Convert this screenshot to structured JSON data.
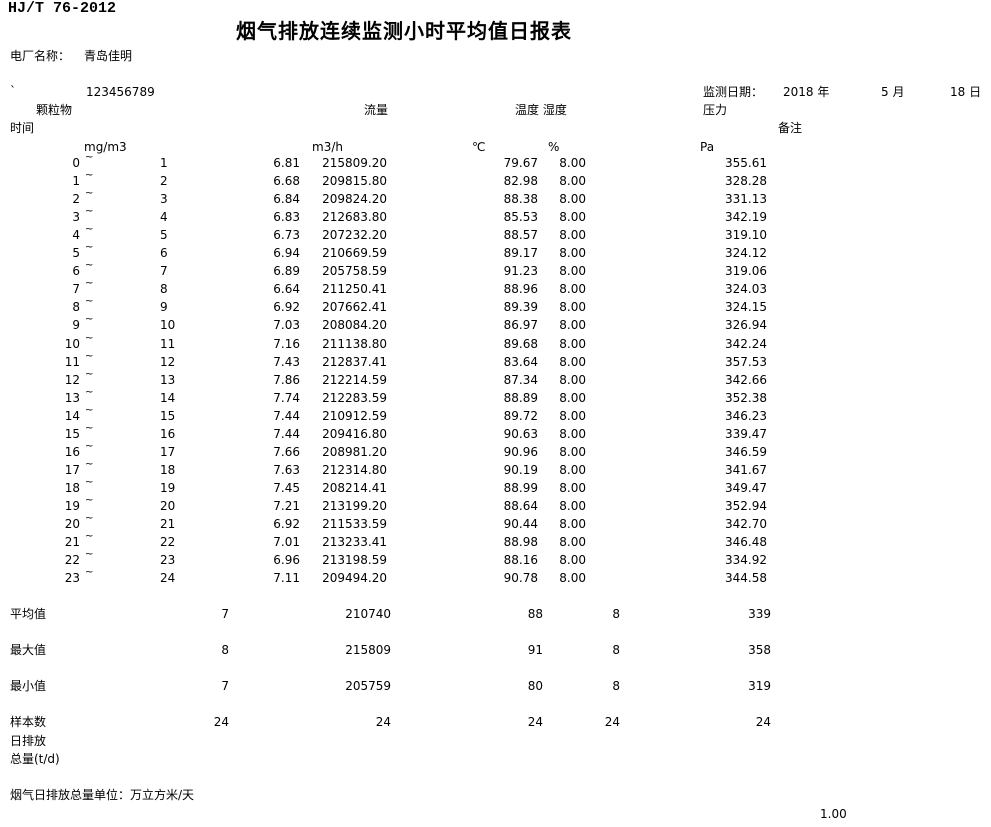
{
  "header": {
    "standard": "HJ/T 76-2012",
    "title": "烟气排放连续监测小时平均值日报表",
    "plant_label": "电厂名称：",
    "plant_name": "青岛佳明",
    "backtick": "`",
    "code": "123456789",
    "date_label": "监测日期：",
    "year": "2018 年",
    "month": "5 月",
    "day": "18 日"
  },
  "columns": {
    "particulate": "颗粒物",
    "flow": "流量",
    "temp_humidity": "温度 湿度",
    "pressure": "压力",
    "time": "时间",
    "remark": "备注",
    "unit_particulate": "mg/m3",
    "unit_flow": "m3/h",
    "unit_temp": "℃",
    "unit_humidity": "%",
    "unit_pressure": "Pa"
  },
  "rows": [
    {
      "start": "0",
      "end": "1",
      "pm": "6.81",
      "flow": "215809.20",
      "temp": "79.67",
      "hum": "8.00",
      "pres": "355.61"
    },
    {
      "start": "1",
      "end": "2",
      "pm": "6.68",
      "flow": "209815.80",
      "temp": "82.98",
      "hum": "8.00",
      "pres": "328.28"
    },
    {
      "start": "2",
      "end": "3",
      "pm": "6.84",
      "flow": "209824.20",
      "temp": "88.38",
      "hum": "8.00",
      "pres": "331.13"
    },
    {
      "start": "3",
      "end": "4",
      "pm": "6.83",
      "flow": "212683.80",
      "temp": "85.53",
      "hum": "8.00",
      "pres": "342.19"
    },
    {
      "start": "4",
      "end": "5",
      "pm": "6.73",
      "flow": "207232.20",
      "temp": "88.57",
      "hum": "8.00",
      "pres": "319.10"
    },
    {
      "start": "5",
      "end": "6",
      "pm": "6.94",
      "flow": "210669.59",
      "temp": "89.17",
      "hum": "8.00",
      "pres": "324.12"
    },
    {
      "start": "6",
      "end": "7",
      "pm": "6.89",
      "flow": "205758.59",
      "temp": "91.23",
      "hum": "8.00",
      "pres": "319.06"
    },
    {
      "start": "7",
      "end": "8",
      "pm": "6.64",
      "flow": "211250.41",
      "temp": "88.96",
      "hum": "8.00",
      "pres": "324.03"
    },
    {
      "start": "8",
      "end": "9",
      "pm": "6.92",
      "flow": "207662.41",
      "temp": "89.39",
      "hum": "8.00",
      "pres": "324.15"
    },
    {
      "start": "9",
      "end": "10",
      "pm": "7.03",
      "flow": "208084.20",
      "temp": "86.97",
      "hum": "8.00",
      "pres": "326.94"
    },
    {
      "start": "10",
      "end": "11",
      "pm": "7.16",
      "flow": "211138.80",
      "temp": "89.68",
      "hum": "8.00",
      "pres": "342.24"
    },
    {
      "start": "11",
      "end": "12",
      "pm": "7.43",
      "flow": "212837.41",
      "temp": "83.64",
      "hum": "8.00",
      "pres": "357.53"
    },
    {
      "start": "12",
      "end": "13",
      "pm": "7.86",
      "flow": "212214.59",
      "temp": "87.34",
      "hum": "8.00",
      "pres": "342.66"
    },
    {
      "start": "13",
      "end": "14",
      "pm": "7.74",
      "flow": "212283.59",
      "temp": "88.89",
      "hum": "8.00",
      "pres": "352.38"
    },
    {
      "start": "14",
      "end": "15",
      "pm": "7.44",
      "flow": "210912.59",
      "temp": "89.72",
      "hum": "8.00",
      "pres": "346.23"
    },
    {
      "start": "15",
      "end": "16",
      "pm": "7.44",
      "flow": "209416.80",
      "temp": "90.63",
      "hum": "8.00",
      "pres": "339.47"
    },
    {
      "start": "16",
      "end": "17",
      "pm": "7.66",
      "flow": "208981.20",
      "temp": "90.96",
      "hum": "8.00",
      "pres": "346.59"
    },
    {
      "start": "17",
      "end": "18",
      "pm": "7.63",
      "flow": "212314.80",
      "temp": "90.19",
      "hum": "8.00",
      "pres": "341.67"
    },
    {
      "start": "18",
      "end": "19",
      "pm": "7.45",
      "flow": "208214.41",
      "temp": "88.99",
      "hum": "8.00",
      "pres": "349.47"
    },
    {
      "start": "19",
      "end": "20",
      "pm": "7.21",
      "flow": "213199.20",
      "temp": "88.64",
      "hum": "8.00",
      "pres": "352.94"
    },
    {
      "start": "20",
      "end": "21",
      "pm": "6.92",
      "flow": "211533.59",
      "temp": "90.44",
      "hum": "8.00",
      "pres": "342.70"
    },
    {
      "start": "21",
      "end": "22",
      "pm": "7.01",
      "flow": "213233.41",
      "temp": "88.98",
      "hum": "8.00",
      "pres": "346.48"
    },
    {
      "start": "22",
      "end": "23",
      "pm": "6.96",
      "flow": "213198.59",
      "temp": "88.16",
      "hum": "8.00",
      "pres": "334.92"
    },
    {
      "start": "23",
      "end": "24",
      "pm": "7.11",
      "flow": "209494.20",
      "temp": "90.78",
      "hum": "8.00",
      "pres": "344.58"
    }
  ],
  "tilde": "~",
  "summary": [
    {
      "label": "平均值",
      "pm": "7",
      "flow": "210740",
      "temp": "88",
      "hum": "8",
      "pres": "339"
    },
    {
      "label": "最大值",
      "pm": "8",
      "flow": "215809",
      "temp": "91",
      "hum": "8",
      "pres": "358"
    },
    {
      "label": "最小值",
      "pm": "7",
      "flow": "205759",
      "temp": "80",
      "hum": "8",
      "pres": "319"
    },
    {
      "label": "样本数",
      "pm": "24",
      "flow": "24",
      "temp": "24",
      "hum": "24",
      "pres": "24"
    }
  ],
  "footer": {
    "daily_label_1": "日排放",
    "daily_label_2": "总量(t/d)",
    "unit_note": "烟气日排放总量单位：万立方米/天",
    "value": "1.00"
  }
}
